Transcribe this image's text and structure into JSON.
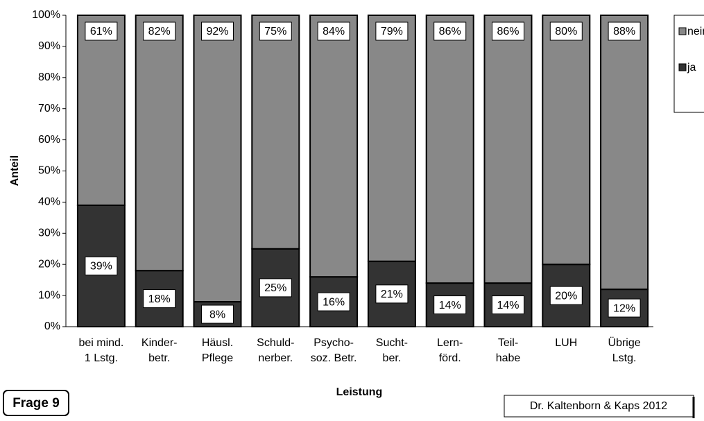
{
  "chart_data": {
    "type": "stacked_bar",
    "y_label": "Anteil",
    "x_label": "Leistung",
    "frage": "Frage 9",
    "credit": "Dr. Kaltenborn & Kaps 2012",
    "categories": [
      [
        "bei mind.",
        "1 Lstg."
      ],
      [
        "Kinder-",
        "betr."
      ],
      [
        "Häusl.",
        "Pflege"
      ],
      [
        "Schuld-",
        "nerber."
      ],
      [
        "Psycho-",
        "soz. Betr."
      ],
      [
        "Sucht-",
        "ber."
      ],
      [
        "Lern-",
        "förd."
      ],
      [
        "Teil-",
        "habe"
      ],
      [
        "LUH"
      ],
      [
        "Übrige",
        "Lstg."
      ]
    ],
    "series": [
      {
        "name": "ja",
        "color": "#333333",
        "values": [
          39,
          18,
          8,
          25,
          16,
          21,
          14,
          14,
          20,
          12
        ],
        "value_labels": [
          "39%",
          "18%",
          "8%",
          "25%",
          "16%",
          "21%",
          "14%",
          "14%",
          "20%",
          "12%"
        ]
      },
      {
        "name": "nein",
        "color": "#888888",
        "values": [
          61,
          82,
          92,
          75,
          84,
          79,
          86,
          86,
          80,
          88
        ],
        "value_labels": [
          "61%",
          "82%",
          "92%",
          "75%",
          "84%",
          "79%",
          "86%",
          "86%",
          "80%",
          "88%"
        ]
      }
    ],
    "ylim": [
      0,
      100
    ],
    "yticks": [
      {
        "value": 0,
        "label": "0%"
      },
      {
        "value": 10,
        "label": "10%"
      },
      {
        "value": 20,
        "label": "20%"
      },
      {
        "value": 30,
        "label": "30%"
      },
      {
        "value": 40,
        "label": "40%"
      },
      {
        "value": 50,
        "label": "50%"
      },
      {
        "value": 60,
        "label": "60%"
      },
      {
        "value": 70,
        "label": "70%"
      },
      {
        "value": 80,
        "label": "80%"
      },
      {
        "value": 90,
        "label": "90%"
      },
      {
        "value": 100,
        "label": "100%"
      }
    ]
  }
}
